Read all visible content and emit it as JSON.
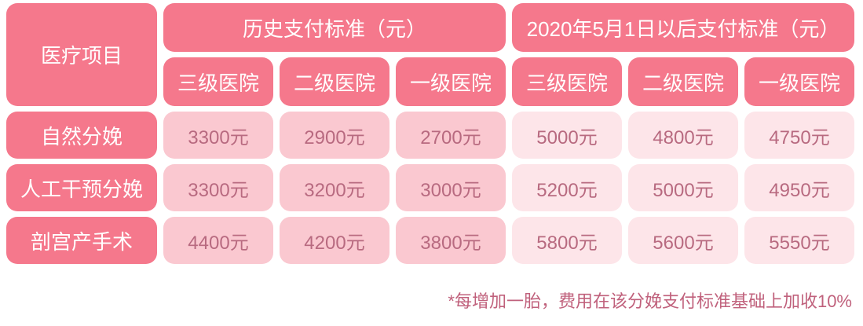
{
  "table": {
    "corner_label": "医疗项目",
    "group_headers": [
      "历史支付标准（元）",
      "2020年5月1日以后支付标准（元）"
    ],
    "sub_headers": [
      "三级医院",
      "二级医院",
      "一级医院",
      "三级医院",
      "二级医院",
      "一级医院"
    ],
    "rows": [
      {
        "label": "自然分娩",
        "values": [
          "3300元",
          "2900元",
          "2700元",
          "5000元",
          "4800元",
          "4750元"
        ]
      },
      {
        "label": "人工干预分娩",
        "values": [
          "3300元",
          "3200元",
          "3000元",
          "5200元",
          "5000元",
          "4950元"
        ]
      },
      {
        "label": "剖宫产手术",
        "values": [
          "4400元",
          "4200元",
          "3800元",
          "5800元",
          "5600元",
          "5550元"
        ]
      }
    ]
  },
  "footnote": "*每增加一胎，费用在该分娩支付标准基础上加收10%",
  "colors": {
    "header": "#f5788c",
    "historical_cell": "#fac8d0",
    "new_cell": "#fde5e9",
    "value_text": "#b86a80"
  }
}
